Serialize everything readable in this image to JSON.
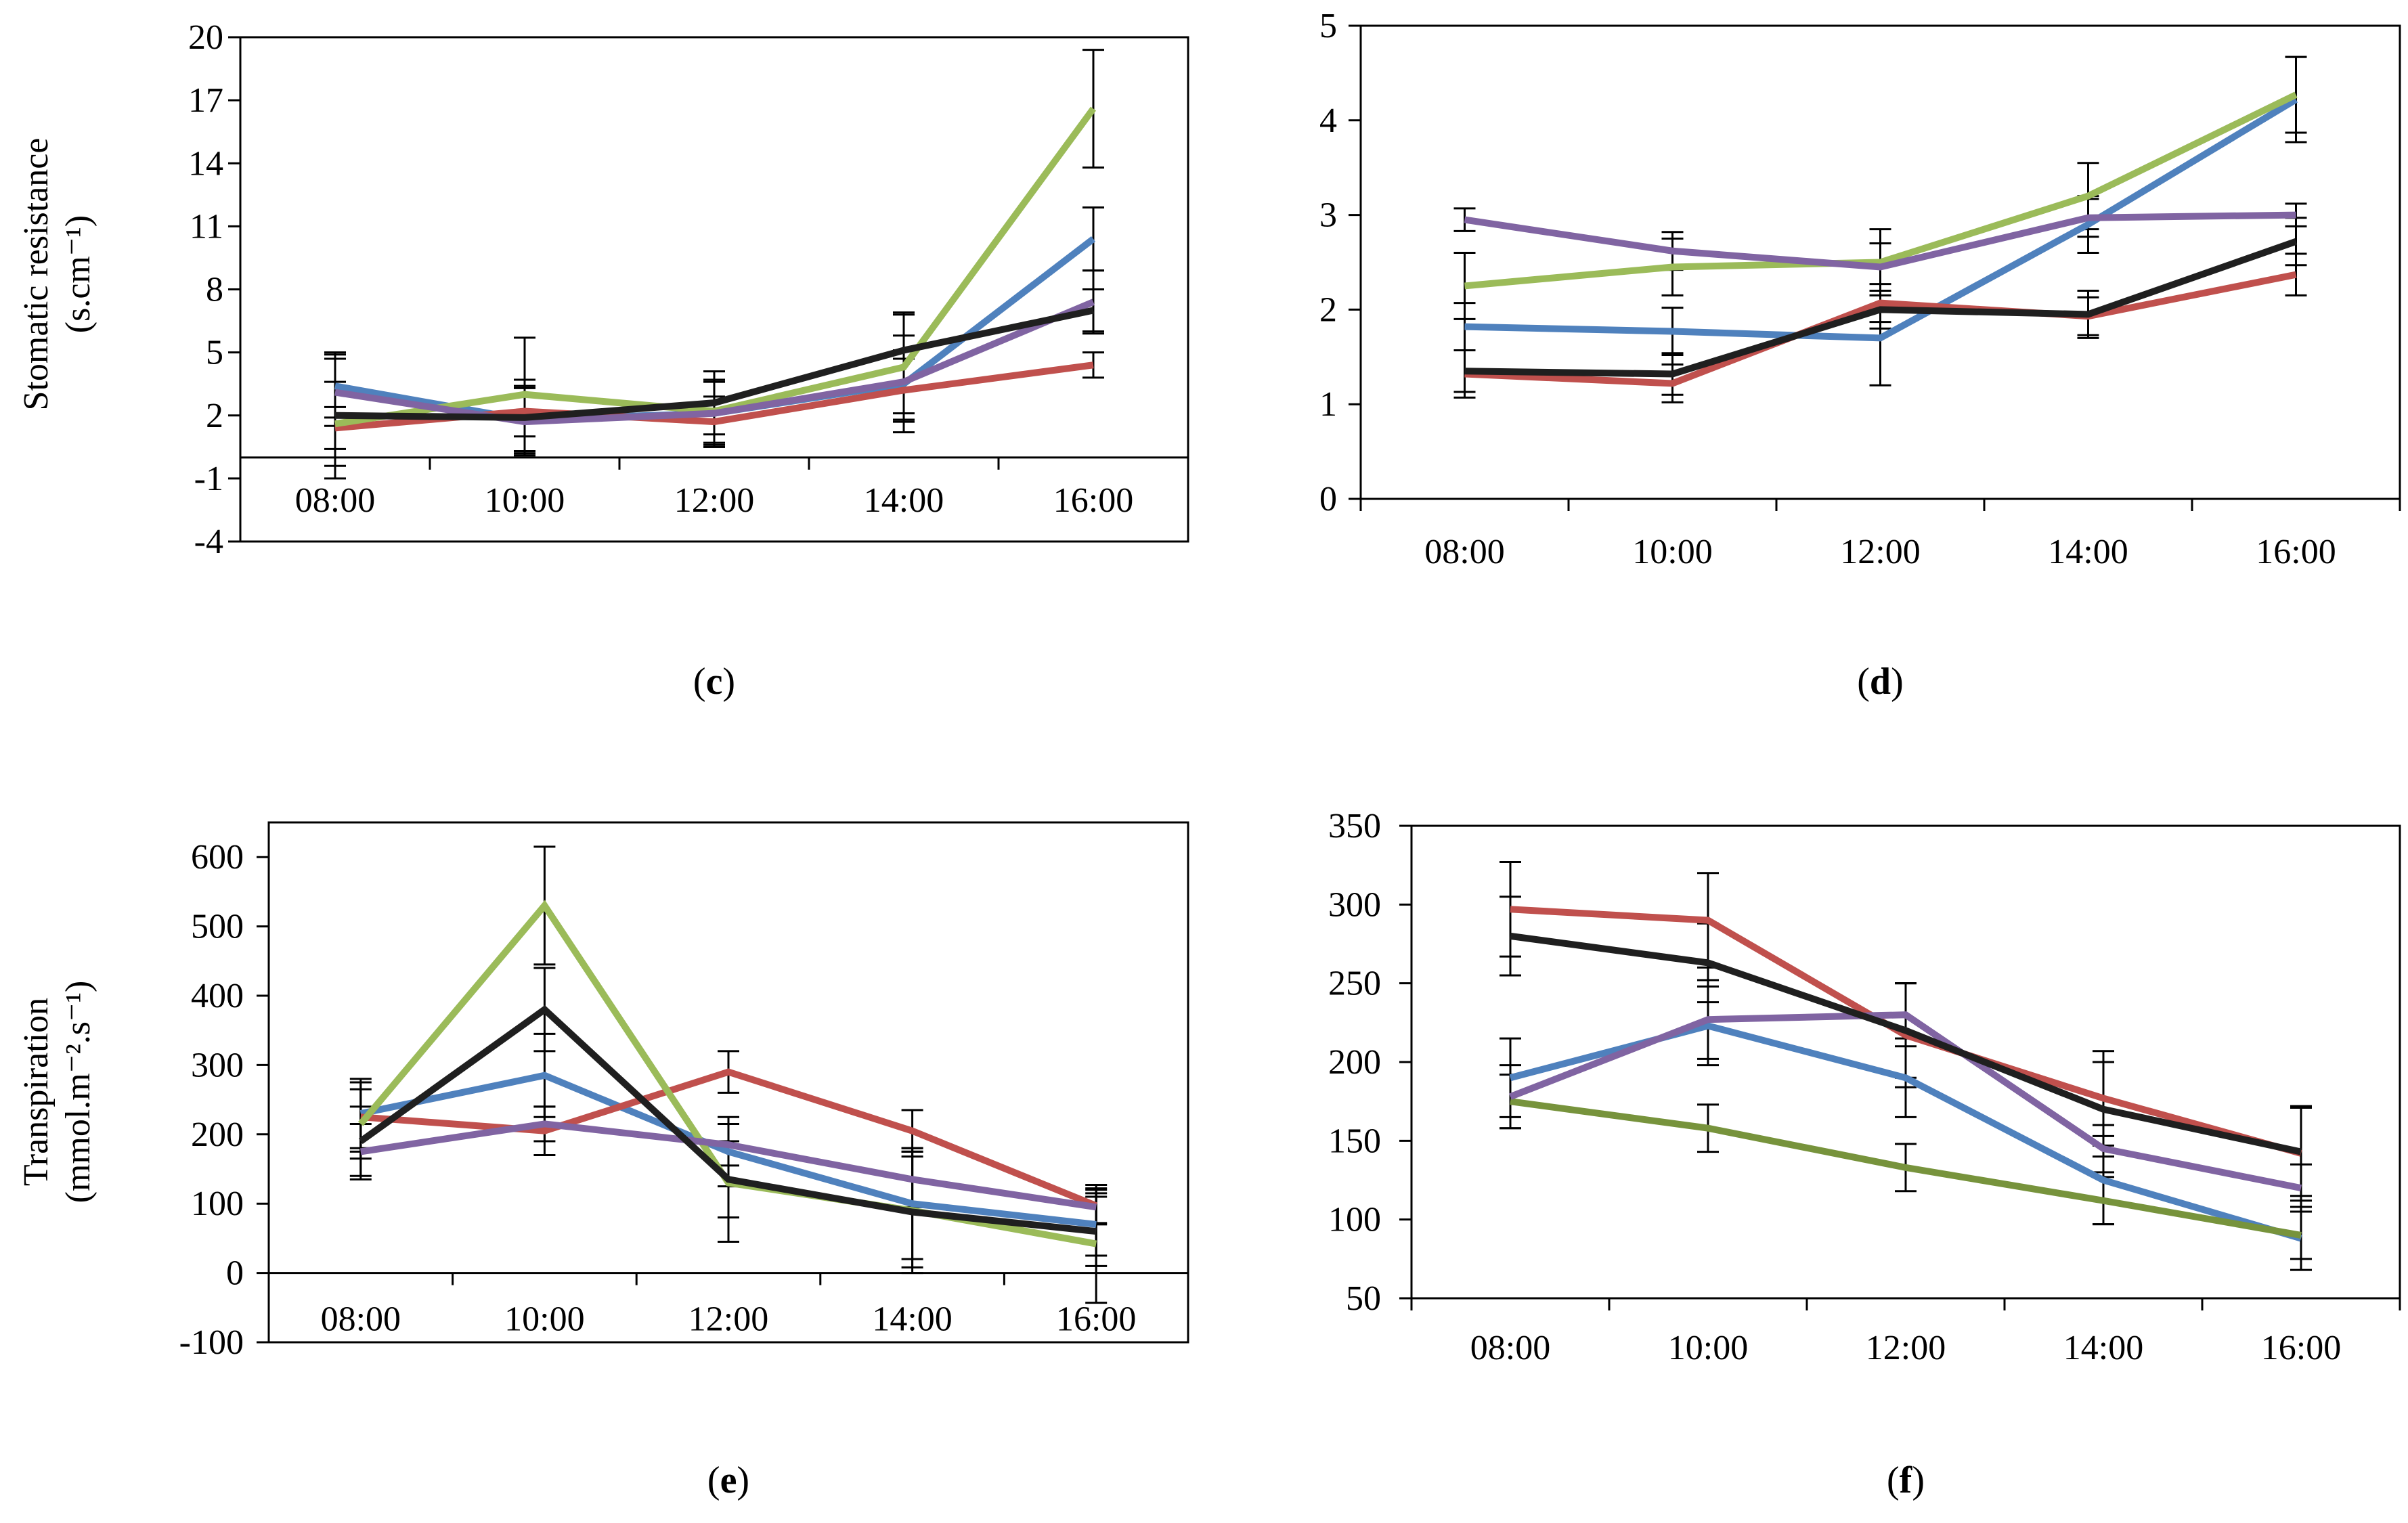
{
  "series_colors": [
    "#4f81bd",
    "#c0504d",
    "#9bbb59",
    "#8064a2",
    "#1f1f1f"
  ],
  "chart_data": [
    {
      "id": "c",
      "type": "line",
      "panel_label": "c",
      "ylabel_line1": "Stomatic resistance",
      "ylabel_line2": "(s.cm⁻¹)",
      "categories": [
        "08:00",
        "10:00",
        "12:00",
        "14:00",
        "16:00"
      ],
      "yticks": [
        "-4",
        "-1",
        "2",
        "5",
        "8",
        "11",
        "14",
        "17",
        "20"
      ],
      "ylim": [
        -4,
        20
      ],
      "x_axis_at": 0,
      "series": [
        {
          "color": "#4f81bd",
          "values": [
            3.4,
            1.8,
            2.1,
            3.5,
            10.4
          ],
          "errors": [
            1.5,
            1.6,
            1.5,
            2.3,
            1.5
          ]
        },
        {
          "color": "#c0504d",
          "values": [
            1.4,
            2.2,
            1.7,
            3.2,
            4.4
          ],
          "errors": [
            1.0,
            1.2,
            1.2,
            1.5,
            0.6
          ]
        },
        {
          "color": "#9bbb59",
          "values": [
            1.6,
            3.0,
            2.2,
            4.3,
            16.6
          ],
          "errors": [
            2.0,
            2.7,
            1.5,
            2.5,
            2.8
          ]
        },
        {
          "color": "#8064a2",
          "values": [
            3.1,
            1.7,
            2.1,
            3.6,
            7.4
          ],
          "errors": [
            1.6,
            1.6,
            1.6,
            1.5,
            1.5
          ]
        },
        {
          "color": "#1f1f1f",
          "values": [
            2.0,
            1.9,
            2.6,
            5.1,
            7.0
          ],
          "errors": [
            3.0,
            1.8,
            1.5,
            1.8,
            1.0
          ]
        }
      ]
    },
    {
      "id": "d",
      "type": "line",
      "panel_label": "d",
      "categories": [
        "08:00",
        "10:00",
        "12:00",
        "14:00",
        "16:00"
      ],
      "yticks": [
        "0",
        "1",
        "2",
        "3",
        "4",
        "5"
      ],
      "ylim": [
        0,
        5
      ],
      "x_axis_at": 0,
      "series": [
        {
          "color": "#4f81bd",
          "values": [
            1.82,
            1.77,
            1.7,
            2.9,
            4.22
          ],
          "errors": [
            0.25,
            0.25,
            0.5,
            0.3,
            0.45
          ]
        },
        {
          "color": "#c0504d",
          "values": [
            1.32,
            1.22,
            2.07,
            1.93,
            2.37
          ],
          "errors": [
            0.25,
            0.2,
            0.2,
            0.2,
            0.22
          ]
        },
        {
          "color": "#9bbb59",
          "values": [
            2.25,
            2.45,
            2.5,
            3.2,
            4.27
          ],
          "errors": [
            0.35,
            0.3,
            0.35,
            0.35,
            0.4
          ]
        },
        {
          "color": "#8064a2",
          "values": [
            2.95,
            2.62,
            2.45,
            2.97,
            3.0
          ],
          "errors": [
            0.12,
            0.2,
            0.25,
            0.2,
            0.12
          ]
        },
        {
          "color": "#1f1f1f",
          "values": [
            1.35,
            1.32,
            2.0,
            1.95,
            2.72
          ],
          "errors": [
            0.22,
            0.22,
            0.2,
            0.25,
            0.25
          ]
        }
      ]
    },
    {
      "id": "e",
      "type": "line",
      "panel_label": "e",
      "ylabel_line1": "Transpiration",
      "ylabel_line2": "(mmol.m⁻².s⁻¹)",
      "categories": [
        "08:00",
        "10:00",
        "12:00",
        "14:00",
        "16:00"
      ],
      "yticks": [
        "-100",
        "0",
        "100",
        "200",
        "300",
        "400",
        "500",
        "600"
      ],
      "ylim": [
        -100,
        650
      ],
      "x_axis_at": 0,
      "series": [
        {
          "color": "#4f81bd",
          "values": [
            230,
            285,
            175,
            100,
            70
          ],
          "errors": [
            50,
            60,
            50,
            80,
            45
          ]
        },
        {
          "color": "#c0504d",
          "values": [
            225,
            205,
            290,
            205,
            97
          ],
          "errors": [
            50,
            35,
            30,
            30,
            25
          ]
        },
        {
          "color": "#9bbb59",
          "values": [
            215,
            530,
            130,
            90,
            42
          ],
          "errors": [
            50,
            85,
            85,
            90,
            85
          ]
        },
        {
          "color": "#8064a2",
          "values": [
            175,
            215,
            185,
            135,
            95
          ],
          "errors": [
            40,
            25,
            30,
            40,
            25
          ]
        },
        {
          "color": "#1f1f1f",
          "values": [
            190,
            380,
            135,
            88,
            60
          ],
          "errors": [
            50,
            60,
            55,
            80,
            50
          ]
        }
      ]
    },
    {
      "id": "f",
      "type": "line",
      "panel_label": "f",
      "categories": [
        "08:00",
        "10:00",
        "12:00",
        "14:00",
        "16:00"
      ],
      "yticks": [
        "50",
        "100",
        "150",
        "200",
        "250",
        "300",
        "350"
      ],
      "ylim": [
        50,
        350
      ],
      "x_axis_at": 50,
      "series": [
        {
          "color": "#4f81bd",
          "values": [
            190,
            223,
            190,
            125,
            88
          ],
          "errors": [
            25,
            25,
            25,
            28,
            20
          ]
        },
        {
          "color": "#c0504d",
          "values": [
            297,
            290,
            217,
            177,
            142
          ],
          "errors": [
            30,
            30,
            33,
            30,
            30
          ]
        },
        {
          "color": "#77933c",
          "values": [
            175,
            158,
            133,
            112,
            90
          ],
          "errors": [
            17,
            15,
            15,
            15,
            15
          ]
        },
        {
          "color": "#8064a2",
          "values": [
            178,
            227,
            230,
            145,
            120
          ],
          "errors": [
            20,
            25,
            20,
            15,
            15
          ]
        },
        {
          "color": "#1f1f1f",
          "values": [
            280,
            263,
            220,
            170,
            143
          ],
          "errors": [
            25,
            25,
            30,
            30,
            28
          ]
        }
      ]
    }
  ]
}
